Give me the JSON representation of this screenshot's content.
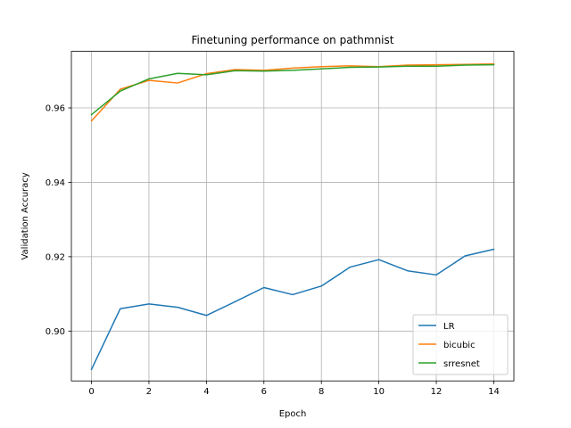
{
  "chart_data": {
    "type": "line",
    "title": "Finetuning performance on pathmnist",
    "xlabel": "Epoch",
    "ylabel": "Validation Accuracy",
    "x": [
      0,
      1,
      2,
      3,
      4,
      5,
      6,
      7,
      8,
      9,
      10,
      11,
      12,
      13,
      14
    ],
    "xlim": [
      -0.7,
      14.7
    ],
    "ylim": [
      0.8866,
      0.9752
    ],
    "xticks": [
      0,
      2,
      4,
      6,
      8,
      10,
      12,
      14
    ],
    "xtick_labels": [
      "0",
      "2",
      "4",
      "6",
      "8",
      "10",
      "12",
      "14"
    ],
    "yticks": [
      0.9,
      0.92,
      0.94,
      0.96
    ],
    "ytick_labels": [
      "0.90",
      "0.92",
      "0.94",
      "0.96"
    ],
    "grid": true,
    "legend_position": "lower-right",
    "series": [
      {
        "name": "LR",
        "color": "#1f77b4",
        "values": [
          0.8897,
          0.906,
          0.9073,
          0.9064,
          0.9042,
          0.9079,
          0.9117,
          0.9098,
          0.9121,
          0.9172,
          0.9192,
          0.9162,
          0.9151,
          0.9202,
          0.922
        ]
      },
      {
        "name": "bicubic",
        "color": "#ff7f0e",
        "values": [
          0.9565,
          0.965,
          0.9674,
          0.9667,
          0.9692,
          0.9703,
          0.9701,
          0.9707,
          0.9711,
          0.9713,
          0.9711,
          0.9715,
          0.9716,
          0.9717,
          0.9718
        ]
      },
      {
        "name": "srresnet",
        "color": "#2ca02c",
        "values": [
          0.9582,
          0.9645,
          0.9678,
          0.9693,
          0.9689,
          0.97,
          0.9699,
          0.9701,
          0.9705,
          0.9709,
          0.971,
          0.9712,
          0.9712,
          0.9715,
          0.9716
        ]
      }
    ]
  }
}
